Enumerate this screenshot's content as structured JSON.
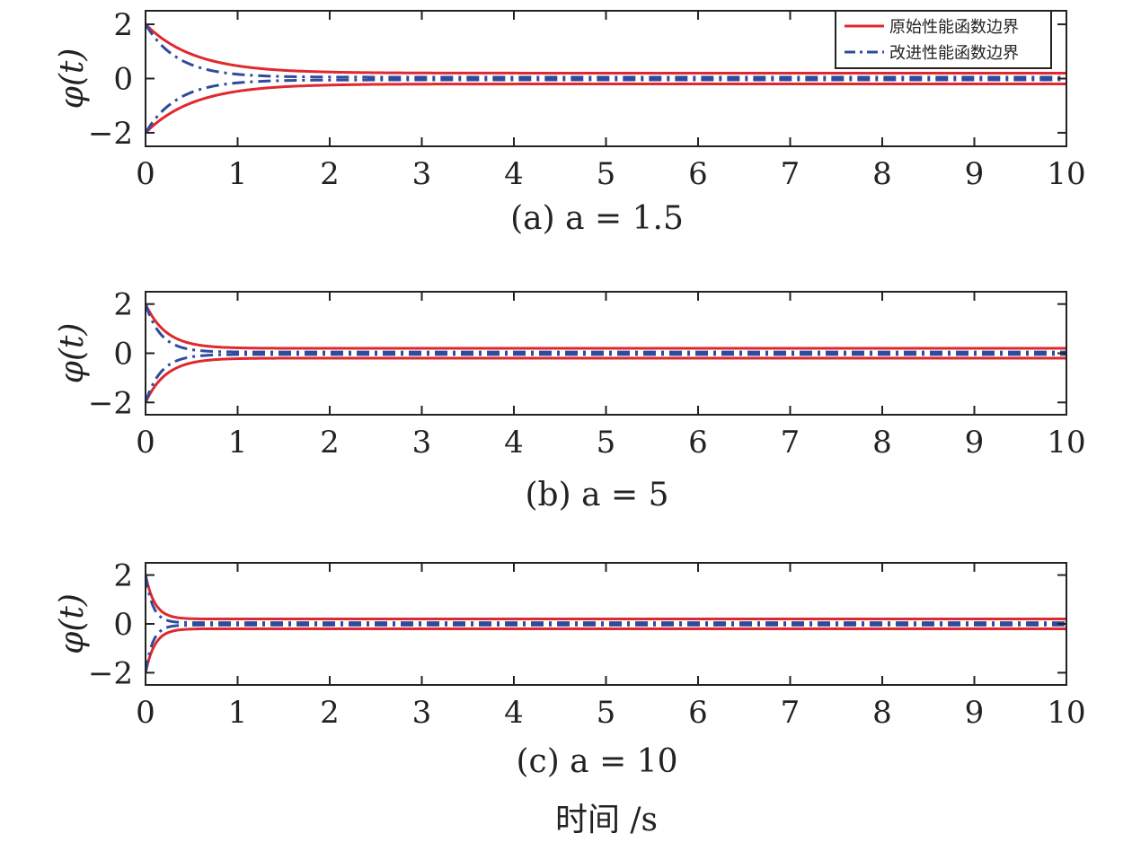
{
  "colors": {
    "original": "#e0282e",
    "improved": "#2e4b9e",
    "axis": "#222222"
  },
  "legend": {
    "original": "原始性能函数边界",
    "improved": "改进性能函数边界"
  },
  "xlabel": "时间 /s",
  "chart_data": [
    {
      "type": "line",
      "caption": "(a) a = 1.5",
      "ylabel": "φ(t)",
      "xlim": [
        0,
        10
      ],
      "ylim": [
        -2.5,
        2.5
      ],
      "x_ticks": [
        0,
        1,
        2,
        3,
        4,
        5,
        6,
        7,
        8,
        9,
        10
      ],
      "y_ticks": [
        -2,
        0,
        2
      ],
      "y_tick_labels": [
        "−2",
        "0",
        "2"
      ],
      "a": 1.5,
      "series": [
        {
          "name": "原始性能函数边界",
          "style": "solid",
          "rho0": 2,
          "rho_inf": 0.2,
          "decay": 1.9
        },
        {
          "name": "改进性能函数边界",
          "style": "dashdot",
          "rho0": 2,
          "rho_inf": 0.05,
          "decay": 2.9
        }
      ]
    },
    {
      "type": "line",
      "caption": "(b) a = 5",
      "ylabel": "φ(t)",
      "xlim": [
        0,
        10
      ],
      "ylim": [
        -2.5,
        2.5
      ],
      "x_ticks": [
        0,
        1,
        2,
        3,
        4,
        5,
        6,
        7,
        8,
        9,
        10
      ],
      "y_ticks": [
        -2,
        0,
        2
      ],
      "y_tick_labels": [
        "−2",
        "0",
        "2"
      ],
      "a": 5,
      "series": [
        {
          "name": "原始性能函数边界",
          "style": "solid",
          "rho0": 2,
          "rho_inf": 0.2,
          "decay": 4.5
        },
        {
          "name": "改进性能函数边界",
          "style": "dashdot",
          "rho0": 2,
          "rho_inf": 0.05,
          "decay": 6.0
        }
      ]
    },
    {
      "type": "line",
      "caption": "(c) a = 10",
      "ylabel": "φ(t)",
      "xlim": [
        0,
        10
      ],
      "ylim": [
        -2.5,
        2.5
      ],
      "x_ticks": [
        0,
        1,
        2,
        3,
        4,
        5,
        6,
        7,
        8,
        9,
        10
      ],
      "y_ticks": [
        -2,
        0,
        2
      ],
      "y_tick_labels": [
        "−2",
        "0",
        "2"
      ],
      "a": 10,
      "series": [
        {
          "name": "原始性能函数边界",
          "style": "solid",
          "rho0": 2,
          "rho_inf": 0.2,
          "decay": 10
        },
        {
          "name": "改进性能函数边界",
          "style": "dashdot",
          "rho0": 2,
          "rho_inf": 0.05,
          "decay": 13
        }
      ]
    }
  ]
}
